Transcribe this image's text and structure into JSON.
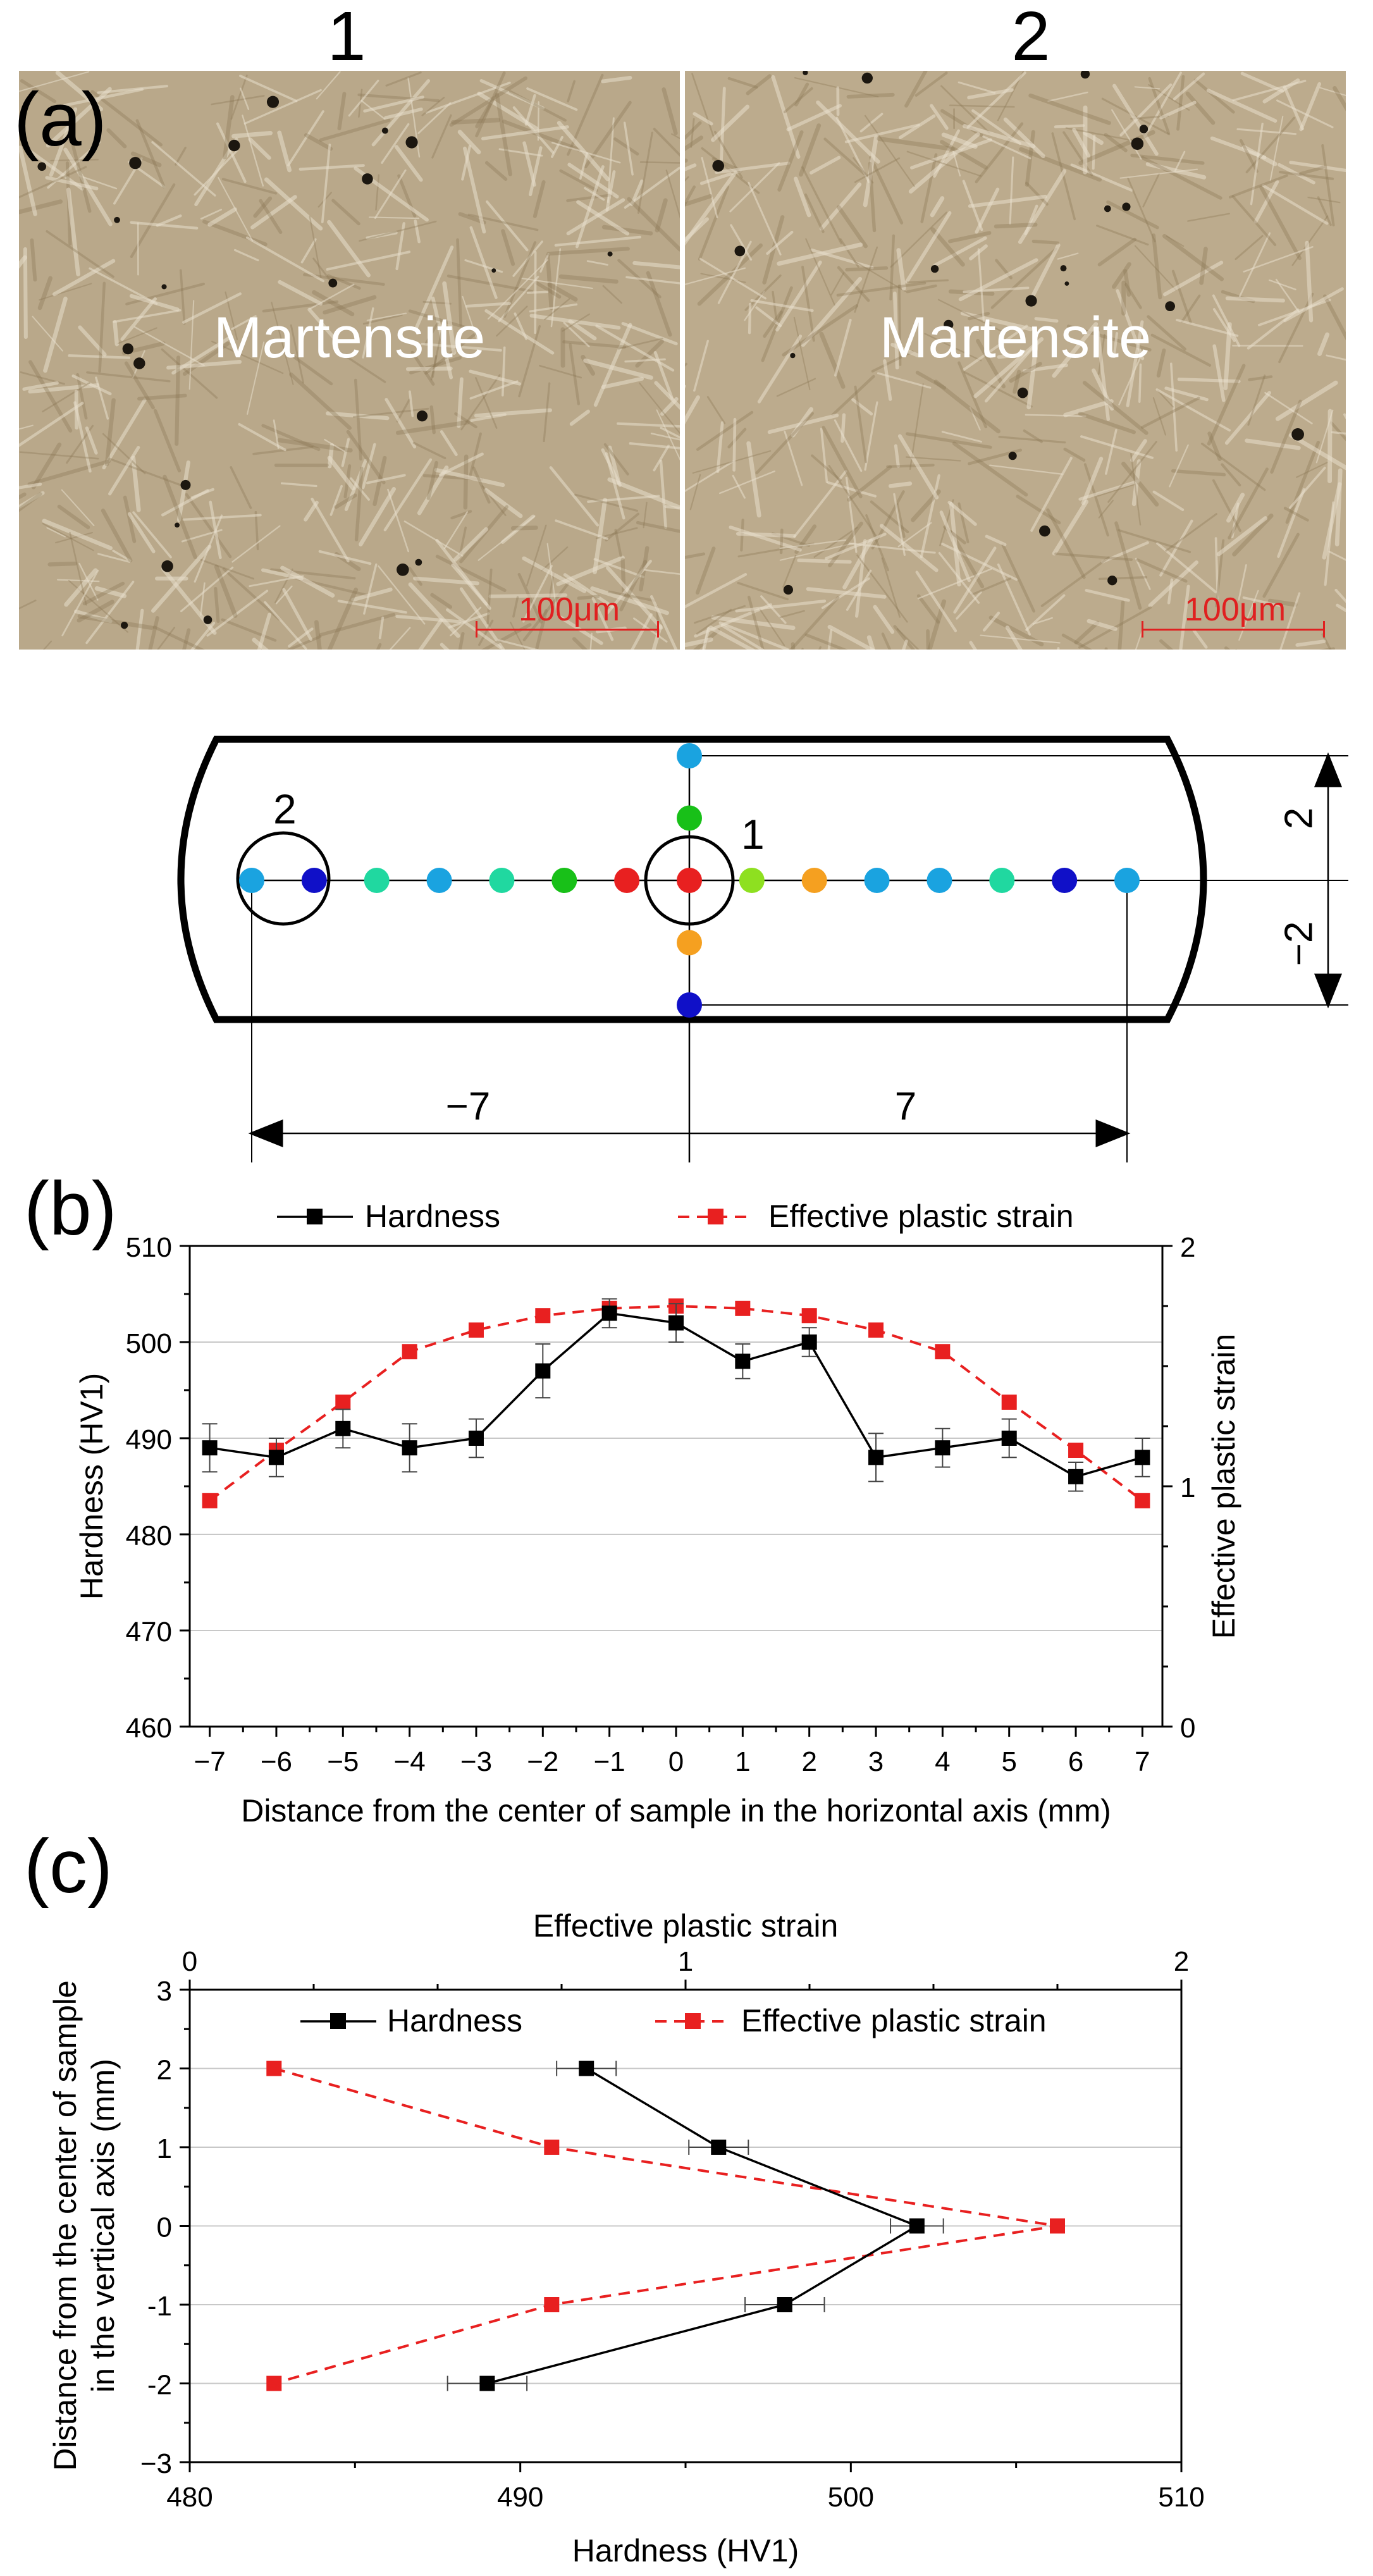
{
  "panel_labels": {
    "a": "(a)",
    "b": "(b)",
    "c": "(c)"
  },
  "micrographs": [
    {
      "index": "1",
      "phase": "Martensite",
      "scale": "100μm"
    },
    {
      "index": "2",
      "phase": "Martensite",
      "scale": "100μm"
    }
  ],
  "schematic": {
    "point_labels": [
      "1",
      "2"
    ],
    "dims": {
      "left": "−7",
      "right": "7",
      "top": "2",
      "bottom": "−2"
    },
    "horizontal_points": [
      {
        "x": -7,
        "color": "#1aa3e0"
      },
      {
        "x": -6,
        "color": "#1010c8"
      },
      {
        "x": -5,
        "color": "#20d8a0"
      },
      {
        "x": -4,
        "color": "#1aa3e0"
      },
      {
        "x": -3,
        "color": "#20d8a0"
      },
      {
        "x": -2,
        "color": "#18c018"
      },
      {
        "x": -1,
        "color": "#e82020"
      },
      {
        "x": 0,
        "color": "#e82020"
      },
      {
        "x": 1,
        "color": "#8ee020"
      },
      {
        "x": 2,
        "color": "#f5a020"
      },
      {
        "x": 3,
        "color": "#1aa3e0"
      },
      {
        "x": 4,
        "color": "#1aa3e0"
      },
      {
        "x": 5,
        "color": "#20d8a0"
      },
      {
        "x": 6,
        "color": "#1010c8"
      },
      {
        "x": 7,
        "color": "#1aa3e0"
      }
    ],
    "vertical_points": [
      {
        "y": 2,
        "color": "#1aa3e0"
      },
      {
        "y": 1,
        "color": "#18c018"
      },
      {
        "y": -1,
        "color": "#f5a020"
      },
      {
        "y": -2,
        "color": "#1010c8"
      }
    ]
  },
  "chart_data": [
    {
      "type": "line",
      "id": "b",
      "xlabel": "Distance from the center of sample in the horizontal axis (mm)",
      "ylabel": "Hardness (HV1)",
      "y2label": "Effective plastic strain",
      "xlim": [
        -7.3,
        7.3
      ],
      "ylim": [
        460,
        510
      ],
      "y2lim": [
        0,
        2
      ],
      "xticks": [
        -7,
        -6,
        -5,
        -4,
        -3,
        -2,
        -1,
        0,
        1,
        2,
        3,
        4,
        5,
        6,
        7
      ],
      "xtick_labels": [
        "−7",
        "−6",
        "−5",
        "−4",
        "−3",
        "−2",
        "−1",
        "0",
        "1",
        "2",
        "3",
        "4",
        "5",
        "6",
        "7"
      ],
      "yticks": [
        460,
        470,
        480,
        490,
        500,
        510
      ],
      "ytick_labels": [
        "460",
        "470",
        "480",
        "490",
        "500",
        "510"
      ],
      "y2ticks": [
        0,
        1,
        2
      ],
      "y2tick_labels": [
        "0",
        "1",
        "2"
      ],
      "grid": "horizontal",
      "legend": "top",
      "series": [
        {
          "name": "Hardness",
          "axis": "left",
          "color": "#000000",
          "style": "solid",
          "x": [
            -7,
            -6,
            -5,
            -4,
            -3,
            -2,
            -1,
            0,
            1,
            2,
            3,
            4,
            5,
            6,
            7
          ],
          "values": [
            489,
            488,
            491,
            489,
            490,
            497,
            503,
            502,
            498,
            500,
            488,
            489,
            490,
            486,
            488
          ],
          "error": [
            2.5,
            2,
            2,
            2.5,
            2,
            2.8,
            1.5,
            2,
            1.8,
            1.5,
            2.5,
            2,
            2,
            1.5,
            2
          ]
        },
        {
          "name": "Effective plastic strain",
          "axis": "right",
          "color": "#e82020",
          "style": "dashed",
          "x": [
            -7,
            -6,
            -5,
            -4,
            -3,
            -2,
            -1,
            0,
            1,
            2,
            3,
            4,
            5,
            6,
            7
          ],
          "values": [
            0.94,
            1.15,
            1.35,
            1.56,
            1.65,
            1.71,
            1.74,
            1.75,
            1.74,
            1.71,
            1.65,
            1.56,
            1.35,
            1.15,
            0.94
          ]
        }
      ]
    },
    {
      "type": "line",
      "id": "c",
      "xlabel": "Hardness (HV1)",
      "x2label": "Effective plastic strain",
      "ylabel_lines": [
        "Distance from the center of sample",
        "in the vertical axis (mm)"
      ],
      "xlim": [
        480,
        510
      ],
      "x2lim": [
        0,
        2
      ],
      "ylim": [
        -3,
        3
      ],
      "xticks": [
        480,
        490,
        500,
        510
      ],
      "xtick_labels": [
        "480",
        "490",
        "500",
        "510"
      ],
      "x2ticks": [
        0,
        1,
        2
      ],
      "x2tick_labels": [
        "0",
        "1",
        "2"
      ],
      "yticks": [
        -3,
        -2,
        -1,
        0,
        1,
        2,
        3
      ],
      "ytick_labels": [
        "−3",
        "-2",
        "-1",
        "0",
        "1",
        "2",
        "3"
      ],
      "grid": "horizontal",
      "legend": "top",
      "series": [
        {
          "name": "Hardness",
          "axis": "bottom",
          "color": "#000000",
          "style": "solid",
          "y": [
            2,
            1,
            0,
            -1,
            -2
          ],
          "values": [
            492,
            496,
            502,
            498,
            489
          ],
          "error": [
            0.9,
            0.9,
            0.8,
            1.2,
            1.2
          ]
        },
        {
          "name": "Effective plastic strain",
          "axis": "top",
          "color": "#e82020",
          "style": "dashed",
          "y": [
            2,
            1,
            0,
            -1,
            -2
          ],
          "values": [
            0.17,
            0.73,
            1.75,
            0.73,
            0.17
          ]
        }
      ]
    }
  ]
}
